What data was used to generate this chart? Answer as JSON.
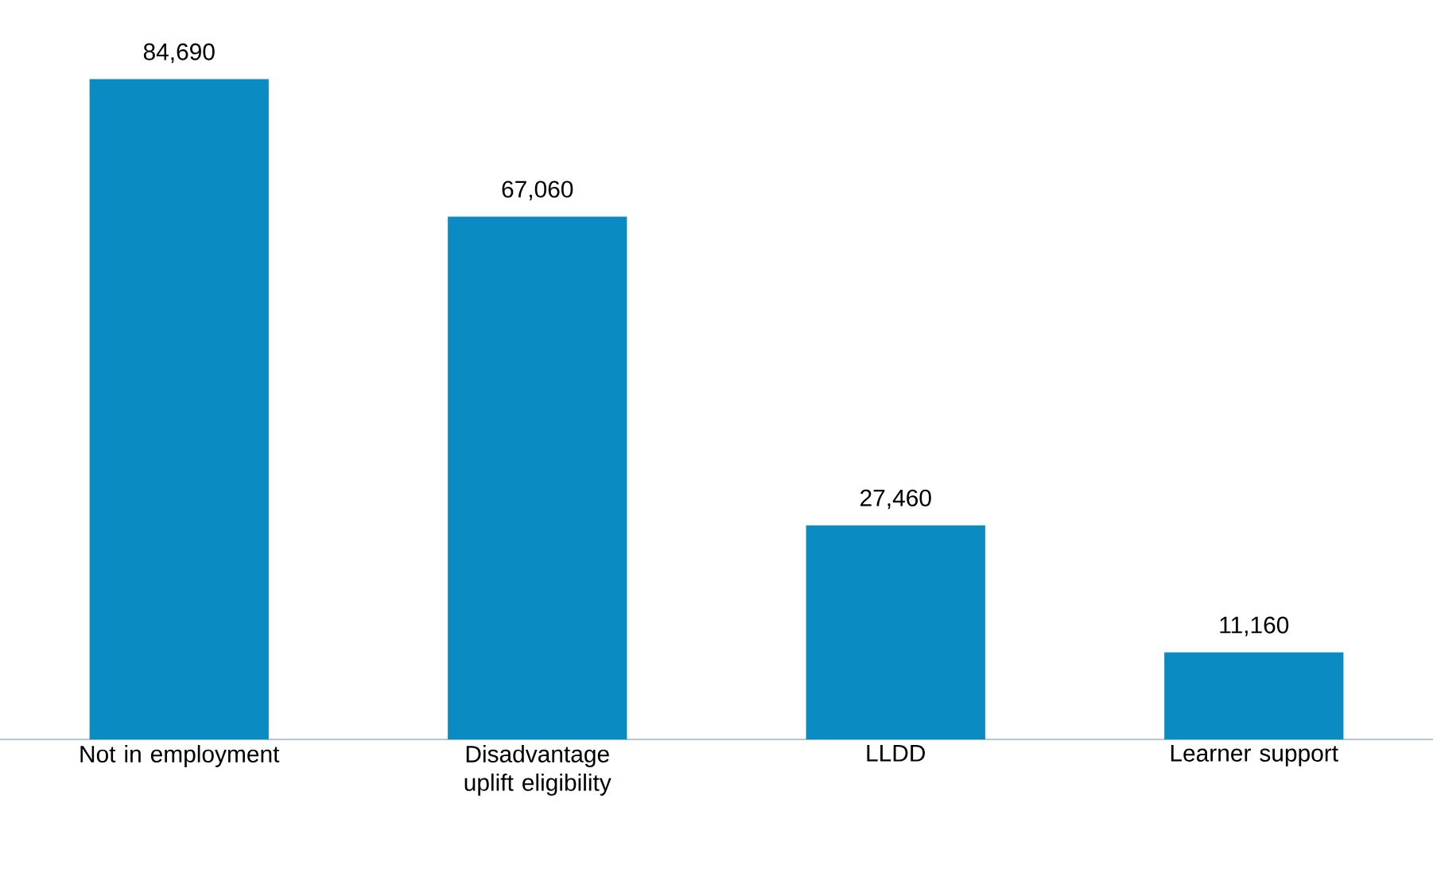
{
  "chart_data": {
    "type": "bar",
    "categories": [
      "Not in employment",
      "Disadvantage uplift eligibility",
      "LLDD",
      "Learner support"
    ],
    "values": [
      84690,
      67060,
      27460,
      11160
    ],
    "value_labels": [
      "84,690",
      "67,060",
      "27,460",
      "11,160"
    ],
    "color": "#0a8bc2",
    "tick_labels": "x"
  }
}
